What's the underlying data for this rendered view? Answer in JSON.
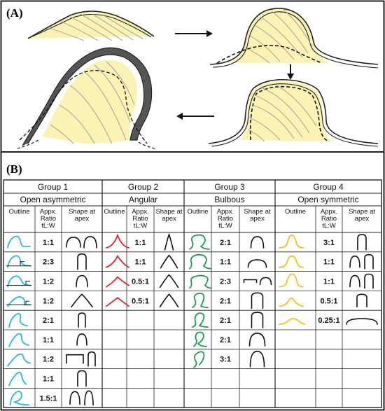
{
  "panel_a": {
    "label": "(A)"
  },
  "panel_b": {
    "label": "(B)",
    "col_headers": {
      "outline": "Outline",
      "ratio": "Appx. Ratio tL:W",
      "shape": "Shape at apex"
    },
    "groups": [
      {
        "title": "Group 1",
        "subtitle": "Open asymmetric",
        "color": "#2bb6d8",
        "ratios": [
          "1:1",
          "2:3",
          "1:2",
          "1:2",
          "2:1",
          "1:1",
          "1:2",
          "1:1",
          "1.5:1"
        ]
      },
      {
        "title": "Group 2",
        "subtitle": "Angular",
        "color": "#d9232d",
        "ratios": [
          "1:1",
          "1:1",
          "0.5:1",
          "0.5:1"
        ]
      },
      {
        "title": "Group 3",
        "subtitle": "Bulbous",
        "color": "#1c9b58",
        "ratios": [
          "2:1",
          "1:1",
          "2:3",
          "2:1",
          "2:1",
          "2:1",
          "3:1"
        ]
      },
      {
        "title": "Group 4",
        "subtitle": "Open symmetric",
        "color": "#f2c21b",
        "ratios": [
          "3:1",
          "1:1",
          "1:1",
          "0.5:1",
          "0.25:1"
        ]
      }
    ]
  }
}
